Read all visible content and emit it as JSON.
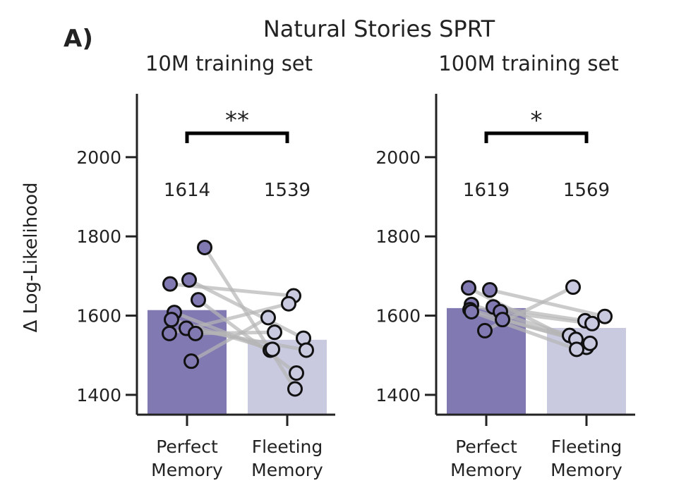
{
  "figure": {
    "panel_letter": "A)",
    "suptitle": "Natural Stories SPRT",
    "ylabel": "Δ Log-Likelihood"
  },
  "colors": {
    "perfect": "#8179b2",
    "fleeting": "#c9c9e0",
    "lines": "#b5b5b5",
    "edge": "#111111"
  },
  "chart_data": [
    {
      "type": "bar",
      "title": "10M training set",
      "categories": [
        "Perfect\nMemory",
        "Fleeting\nMemory"
      ],
      "values": [
        1614,
        1539
      ],
      "value_labels": [
        "1614",
        "1539"
      ],
      "ylim": [
        1350,
        2160
      ],
      "yticks": [
        1400,
        1600,
        1800,
        2000
      ],
      "ytick_labels": [
        "1400",
        "1600",
        "1800",
        "2000"
      ],
      "significance": "**",
      "points": {
        "perfect": [
          1772,
          1690,
          1680,
          1640,
          1608,
          1590,
          1568,
          1555,
          1555,
          1485
        ],
        "fleeting": [
          1415,
          1543,
          1650,
          1455,
          1513,
          1515,
          1513,
          1558,
          1630,
          1595
        ]
      }
    },
    {
      "type": "bar",
      "title": "100M training set",
      "categories": [
        "Perfect\nMemory",
        "Fleeting\nMemory"
      ],
      "values": [
        1619,
        1569
      ],
      "value_labels": [
        "1619",
        "1569"
      ],
      "ylim": [
        1350,
        2160
      ],
      "yticks": [
        1400,
        1600,
        1800,
        2000
      ],
      "ytick_labels": [
        "1400",
        "1600",
        "1800",
        "2000"
      ],
      "significance": "*",
      "points": {
        "perfect": [
          1670,
          1665,
          1628,
          1622,
          1615,
          1610,
          1610,
          1590,
          1562
        ],
        "fleeting": [
          1520,
          1598,
          1550,
          1587,
          1540,
          1580,
          1515,
          1530,
          1672
        ]
      }
    }
  ]
}
